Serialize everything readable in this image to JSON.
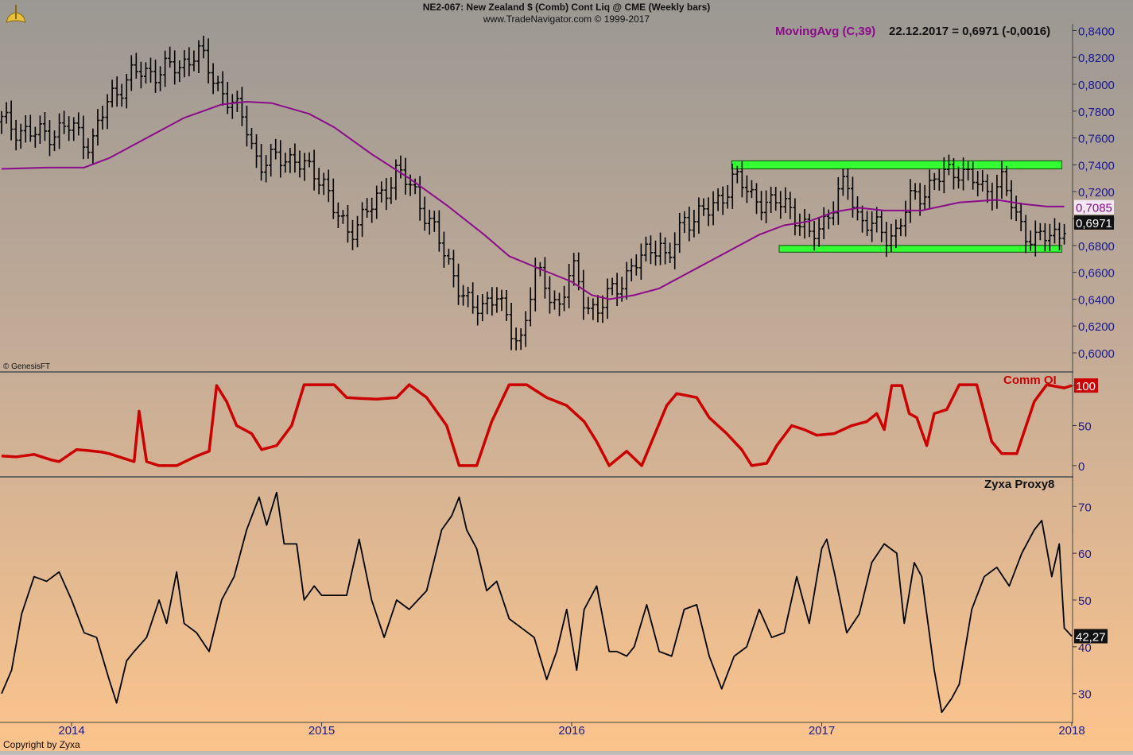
{
  "header": {
    "title": "NE2-067:  New Zealand $ (Comb) Cont Liq @ CME  (Weekly bars)",
    "subtitle": "www.TradeNavigator.com © 1999-2017"
  },
  "footer": {
    "copyright": "Copyright by Zyxa",
    "genesis": "© GenesisFT"
  },
  "colors": {
    "price_bars": "#000000",
    "moving_avg": "#8b0b8b",
    "comm_oi": "#cc0000",
    "proxy": "#000000",
    "zones": "#33ff33",
    "axis_text": "#1a1a8c"
  },
  "chart_data": [
    {
      "type": "bar",
      "panel": "price",
      "legend": "MovingAvg (C,39)",
      "readout": "22.12.2017 = 0,6971 (-0,0016)",
      "ylim": [
        0.587,
        0.845
      ],
      "y_ticks": [
        "0,8400",
        "0,8200",
        "0,8000",
        "0,7800",
        "0,7600",
        "0,7400",
        "0,7200",
        "0,7000",
        "0,6800",
        "0,6600",
        "0,6400",
        "0,6200",
        "0,6000"
      ],
      "last_value_label": "0,6971",
      "ma_value_label": "0,7085",
      "x_axis": {
        "labels": [
          "2014",
          "2015",
          "2016",
          "2017",
          "2018"
        ],
        "start": 2013.72,
        "end": 2018.0
      },
      "anchors": [
        [
          2013.72,
          0.772
        ],
        [
          2013.85,
          0.762
        ],
        [
          2014.0,
          0.768
        ],
        [
          2014.08,
          0.755
        ],
        [
          2014.15,
          0.79
        ],
        [
          2014.25,
          0.808
        ],
        [
          2014.35,
          0.81
        ],
        [
          2014.43,
          0.813
        ],
        [
          2014.5,
          0.825
        ],
        [
          2014.55,
          0.81
        ],
        [
          2014.62,
          0.79
        ],
        [
          2014.7,
          0.77
        ],
        [
          2014.75,
          0.738
        ],
        [
          2014.85,
          0.748
        ],
        [
          2014.95,
          0.735
        ],
        [
          2015.0,
          0.733
        ],
        [
          2015.05,
          0.705
        ],
        [
          2015.1,
          0.69
        ],
        [
          2015.2,
          0.708
        ],
        [
          2015.3,
          0.735
        ],
        [
          2015.38,
          0.718
        ],
        [
          2015.45,
          0.69
        ],
        [
          2015.5,
          0.67
        ],
        [
          2015.6,
          0.63
        ],
        [
          2015.7,
          0.645
        ],
        [
          2015.75,
          0.615
        ],
        [
          2015.8,
          0.611
        ],
        [
          2015.85,
          0.66
        ],
        [
          2015.95,
          0.635
        ],
        [
          2016.0,
          0.663
        ],
        [
          2016.05,
          0.64
        ],
        [
          2016.1,
          0.63
        ],
        [
          2016.2,
          0.655
        ],
        [
          2016.28,
          0.67
        ],
        [
          2016.35,
          0.685
        ],
        [
          2016.38,
          0.665
        ],
        [
          2016.45,
          0.7
        ],
        [
          2016.55,
          0.705
        ],
        [
          2016.65,
          0.73
        ],
        [
          2016.72,
          0.718
        ],
        [
          2016.8,
          0.708
        ],
        [
          2016.85,
          0.715
        ],
        [
          2016.95,
          0.685
        ],
        [
          2017.05,
          0.71
        ],
        [
          2017.1,
          0.728
        ],
        [
          2017.15,
          0.7
        ],
        [
          2017.25,
          0.688
        ],
        [
          2017.3,
          0.69
        ],
        [
          2017.35,
          0.712
        ],
        [
          2017.45,
          0.728
        ],
        [
          2017.55,
          0.738
        ],
        [
          2017.65,
          0.72
        ],
        [
          2017.72,
          0.728
        ],
        [
          2017.78,
          0.7
        ],
        [
          2017.85,
          0.683
        ],
        [
          2017.95,
          0.69
        ],
        [
          2017.97,
          0.697
        ]
      ],
      "moving_avg": [
        [
          2013.72,
          0.737
        ],
        [
          2013.9,
          0.738
        ],
        [
          2014.05,
          0.738
        ],
        [
          2014.15,
          0.745
        ],
        [
          2014.3,
          0.76
        ],
        [
          2014.45,
          0.775
        ],
        [
          2014.6,
          0.785
        ],
        [
          2014.7,
          0.787
        ],
        [
          2014.8,
          0.786
        ],
        [
          2014.95,
          0.778
        ],
        [
          2015.05,
          0.768
        ],
        [
          2015.2,
          0.748
        ],
        [
          2015.35,
          0.73
        ],
        [
          2015.5,
          0.71
        ],
        [
          2015.65,
          0.688
        ],
        [
          2015.75,
          0.672
        ],
        [
          2015.88,
          0.662
        ],
        [
          2016.0,
          0.653
        ],
        [
          2016.08,
          0.643
        ],
        [
          2016.15,
          0.64
        ],
        [
          2016.25,
          0.643
        ],
        [
          2016.35,
          0.648
        ],
        [
          2016.45,
          0.658
        ],
        [
          2016.55,
          0.668
        ],
        [
          2016.65,
          0.678
        ],
        [
          2016.75,
          0.688
        ],
        [
          2016.85,
          0.695
        ],
        [
          2016.95,
          0.698
        ],
        [
          2017.05,
          0.705
        ],
        [
          2017.15,
          0.708
        ],
        [
          2017.25,
          0.706
        ],
        [
          2017.4,
          0.706
        ],
        [
          2017.55,
          0.712
        ],
        [
          2017.7,
          0.714
        ],
        [
          2017.8,
          0.711
        ],
        [
          2017.9,
          0.709
        ],
        [
          2017.97,
          0.709
        ]
      ],
      "zones": [
        {
          "from": 2016.64,
          "to": 2017.96,
          "low": 0.737,
          "high": 0.743
        },
        {
          "from": 2016.83,
          "to": 2017.96,
          "low": 0.675,
          "high": 0.68
        }
      ]
    },
    {
      "type": "line",
      "panel": "oi",
      "legend": "Comm OI",
      "ylim": [
        -12,
        113
      ],
      "y_ticks": [
        "100",
        "50",
        "0"
      ],
      "last_value_label": "100",
      "points": [
        [
          2013.72,
          12
        ],
        [
          2013.78,
          11
        ],
        [
          2013.85,
          14
        ],
        [
          2013.92,
          7
        ],
        [
          2013.95,
          5
        ],
        [
          2014.02,
          20
        ],
        [
          2014.06,
          19
        ],
        [
          2014.12,
          17
        ],
        [
          2014.15,
          15
        ],
        [
          2014.25,
          5
        ],
        [
          2014.27,
          68
        ],
        [
          2014.3,
          5
        ],
        [
          2014.35,
          0
        ],
        [
          2014.42,
          0
        ],
        [
          2014.5,
          12
        ],
        [
          2014.55,
          18
        ],
        [
          2014.58,
          100
        ],
        [
          2014.62,
          80
        ],
        [
          2014.66,
          50
        ],
        [
          2014.72,
          40
        ],
        [
          2014.76,
          20
        ],
        [
          2014.82,
          25
        ],
        [
          2014.88,
          50
        ],
        [
          2014.93,
          101
        ],
        [
          2015.0,
          101
        ],
        [
          2015.05,
          101
        ],
        [
          2015.1,
          85
        ],
        [
          2015.15,
          84
        ],
        [
          2015.22,
          83
        ],
        [
          2015.3,
          85
        ],
        [
          2015.35,
          101
        ],
        [
          2015.42,
          85
        ],
        [
          2015.5,
          50
        ],
        [
          2015.55,
          0
        ],
        [
          2015.62,
          0
        ],
        [
          2015.68,
          55
        ],
        [
          2015.75,
          101
        ],
        [
          2015.82,
          101
        ],
        [
          2015.9,
          85
        ],
        [
          2015.98,
          75
        ],
        [
          2016.05,
          55
        ],
        [
          2016.1,
          30
        ],
        [
          2016.15,
          0
        ],
        [
          2016.22,
          18
        ],
        [
          2016.28,
          0
        ],
        [
          2016.32,
          30
        ],
        [
          2016.38,
          75
        ],
        [
          2016.42,
          90
        ],
        [
          2016.5,
          85
        ],
        [
          2016.55,
          60
        ],
        [
          2016.62,
          40
        ],
        [
          2016.68,
          20
        ],
        [
          2016.72,
          0
        ],
        [
          2016.78,
          3
        ],
        [
          2016.82,
          25
        ],
        [
          2016.88,
          50
        ],
        [
          2016.93,
          45
        ],
        [
          2016.98,
          38
        ],
        [
          2017.05,
          40
        ],
        [
          2017.12,
          50
        ],
        [
          2017.18,
          55
        ],
        [
          2017.22,
          65
        ],
        [
          2017.25,
          45
        ],
        [
          2017.28,
          100
        ],
        [
          2017.32,
          100
        ],
        [
          2017.35,
          65
        ],
        [
          2017.38,
          60
        ],
        [
          2017.42,
          25
        ],
        [
          2017.45,
          65
        ],
        [
          2017.5,
          70
        ],
        [
          2017.55,
          101
        ],
        [
          2017.62,
          101
        ],
        [
          2017.68,
          30
        ],
        [
          2017.72,
          15
        ],
        [
          2017.78,
          15
        ],
        [
          2017.85,
          80
        ],
        [
          2017.9,
          101
        ],
        [
          2017.97,
          97
        ],
        [
          2018.0,
          100
        ]
      ]
    },
    {
      "type": "line",
      "panel": "proxy",
      "legend": "Zyxa Proxy8",
      "ylim": [
        24,
        76
      ],
      "y_ticks": [
        "70",
        "60",
        "50",
        "40",
        "30"
      ],
      "last_value_label": "42,27",
      "points": [
        [
          2013.72,
          30
        ],
        [
          2013.76,
          35
        ],
        [
          2013.8,
          47
        ],
        [
          2013.85,
          55
        ],
        [
          2013.9,
          54
        ],
        [
          2013.95,
          56
        ],
        [
          2014.0,
          50
        ],
        [
          2014.05,
          43
        ],
        [
          2014.1,
          42
        ],
        [
          2014.15,
          33
        ],
        [
          2014.18,
          28
        ],
        [
          2014.22,
          37
        ],
        [
          2014.25,
          39
        ],
        [
          2014.3,
          42
        ],
        [
          2014.35,
          50
        ],
        [
          2014.38,
          45
        ],
        [
          2014.42,
          56
        ],
        [
          2014.45,
          45
        ],
        [
          2014.5,
          43
        ],
        [
          2014.55,
          39
        ],
        [
          2014.6,
          50
        ],
        [
          2014.65,
          55
        ],
        [
          2014.7,
          65
        ],
        [
          2014.75,
          72
        ],
        [
          2014.78,
          66
        ],
        [
          2014.82,
          73
        ],
        [
          2014.85,
          62
        ],
        [
          2014.9,
          62
        ],
        [
          2014.93,
          50
        ],
        [
          2014.97,
          53
        ],
        [
          2015.0,
          51
        ],
        [
          2015.05,
          51
        ],
        [
          2015.1,
          51
        ],
        [
          2015.15,
          63
        ],
        [
          2015.2,
          50
        ],
        [
          2015.25,
          42
        ],
        [
          2015.3,
          50
        ],
        [
          2015.35,
          48
        ],
        [
          2015.42,
          52
        ],
        [
          2015.48,
          65
        ],
        [
          2015.52,
          68
        ],
        [
          2015.55,
          72
        ],
        [
          2015.58,
          65
        ],
        [
          2015.62,
          61
        ],
        [
          2015.66,
          52
        ],
        [
          2015.7,
          54
        ],
        [
          2015.75,
          46
        ],
        [
          2015.8,
          44
        ],
        [
          2015.85,
          42
        ],
        [
          2015.9,
          33
        ],
        [
          2015.94,
          39
        ],
        [
          2015.98,
          48
        ],
        [
          2016.02,
          35
        ],
        [
          2016.05,
          48
        ],
        [
          2016.1,
          53
        ],
        [
          2016.15,
          39
        ],
        [
          2016.18,
          39
        ],
        [
          2016.22,
          38
        ],
        [
          2016.25,
          40
        ],
        [
          2016.3,
          49
        ],
        [
          2016.35,
          39
        ],
        [
          2016.4,
          38
        ],
        [
          2016.45,
          48
        ],
        [
          2016.5,
          49
        ],
        [
          2016.55,
          38
        ],
        [
          2016.6,
          31
        ],
        [
          2016.65,
          38
        ],
        [
          2016.7,
          40
        ],
        [
          2016.75,
          48
        ],
        [
          2016.8,
          42
        ],
        [
          2016.85,
          43
        ],
        [
          2016.9,
          55
        ],
        [
          2016.95,
          45
        ],
        [
          2017.0,
          61
        ],
        [
          2017.02,
          63
        ],
        [
          2017.05,
          56
        ],
        [
          2017.1,
          43
        ],
        [
          2017.15,
          47
        ],
        [
          2017.2,
          58
        ],
        [
          2017.25,
          62
        ],
        [
          2017.3,
          60
        ],
        [
          2017.33,
          45
        ],
        [
          2017.37,
          58
        ],
        [
          2017.4,
          55
        ],
        [
          2017.45,
          35
        ],
        [
          2017.48,
          26
        ],
        [
          2017.52,
          29
        ],
        [
          2017.55,
          32
        ],
        [
          2017.6,
          48
        ],
        [
          2017.65,
          55
        ],
        [
          2017.7,
          57
        ],
        [
          2017.75,
          53
        ],
        [
          2017.8,
          60
        ],
        [
          2017.85,
          65
        ],
        [
          2017.88,
          67
        ],
        [
          2017.92,
          55
        ],
        [
          2017.95,
          62
        ],
        [
          2017.97,
          44
        ],
        [
          2018.0,
          42.27
        ]
      ]
    }
  ]
}
